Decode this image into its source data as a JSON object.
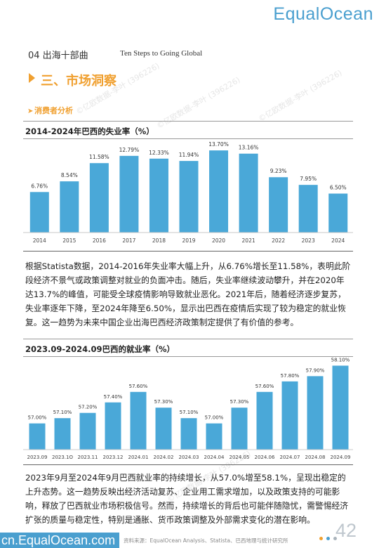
{
  "header": {
    "logo": "EqualOcean"
  },
  "chapter": {
    "label": "04 出海十部曲",
    "english": "Ten Steps to Going Global"
  },
  "section": {
    "title": "三、市场洞察"
  },
  "subsection": {
    "title": "消费者分析"
  },
  "chart1": {
    "title": "2014-2024年巴西的失业率（%）"
  },
  "chart2": {
    "title": "2023.09-2024.09巴西的就业率（%）"
  },
  "paragraph1": "根据Statista数据，2014-2016年失业率大幅上升，从6.76%增长至11.58%，表明此阶段经济不景气或政策调整对就业的负面冲击。随后，失业率继续波动攀升，并在2020年达13.7%的峰值，可能受全球疫情影响导致就业恶化。2021年后，随着经济逐步复苏，失业率逐年下降，至2024年降至6.50%，显示出巴西在疫情后实现了较为稳定的就业恢复。这一趋势为未来中国企业出海巴西经济政策制定提供了有价值的参考。",
  "paragraph2": "2023年9月至2024年9月巴西就业率的持续增长，从57.0%增至58.1%，呈现出稳定的上升态势。这一趋势反映出经济活动复苏、企业用工需求增加，以及政策支持的可能影响，释放了巴西就业市场积极信号。然而，持续增长的背后也可能伴随隐忧，需警惕经济扩张的质量与稳定性，特别是通胀、货币政策调整及外部需求变化的潜在影响。",
  "watermarks": [
    "©亿欧数据-李叶 (396226)",
    "©亿欧数据-李叶 (396226)",
    "©亿欧数据-李叶 (396226)",
    "©亿欧数据-李叶 (396226)"
  ],
  "footer": {
    "site": "cn.EqualOcean.com",
    "source": "资料来源：EqualOcean Analysis、Statista、巴西地理与统计研究所",
    "page": "42",
    "dot_colors": [
      "#f0a030",
      "#4a9fcf",
      "#aab4bc"
    ]
  },
  "colors": {
    "bar": "#4aa8d8",
    "accent": "#f0a030",
    "brand": "#4a9fcf"
  },
  "chart_data": [
    {
      "type": "bar",
      "title": "2014-2024年巴西的失业率（%）",
      "categories": [
        "2014",
        "2015",
        "2016",
        "2017",
        "2018",
        "2019",
        "2020",
        "2021",
        "2022",
        "2023",
        "2024"
      ],
      "values": [
        6.76,
        8.54,
        11.58,
        12.79,
        12.33,
        11.94,
        13.7,
        13.16,
        9.23,
        7.95,
        6.5
      ],
      "labels": [
        "6.76%",
        "8.54%",
        "11.58%",
        "12.79%",
        "12.33%",
        "11.94%",
        "13.70%",
        "13.16%",
        "9.23%",
        "7.95%",
        "6.50%"
      ],
      "ylim": [
        0,
        15
      ],
      "grid": false,
      "legend": "none"
    },
    {
      "type": "bar",
      "title": "2023.09-2024.09巴西的就业率（%）",
      "categories": [
        "2023.09",
        "2023.1O",
        "2023.11",
        "2023.12",
        "2024.01",
        "2024.02",
        "2024.03",
        "2024.04",
        "2024.05",
        "2024.06",
        "2024.07",
        "2024.08",
        "2024.09"
      ],
      "values": [
        57.0,
        57.1,
        57.2,
        57.4,
        57.6,
        57.3,
        57.1,
        57.0,
        57.3,
        57.6,
        57.8,
        57.9,
        58.1
      ],
      "labels": [
        "57.00%",
        "57.10%",
        "57.20%",
        "57.40%",
        "57.60%",
        "57.30%",
        "57.10%",
        "57.00%",
        "57.30%",
        "57.60%",
        "57.80%",
        "57.90%",
        "58.10%"
      ],
      "ylim": [
        56.5,
        58.2
      ],
      "grid": false,
      "legend": "none"
    }
  ]
}
